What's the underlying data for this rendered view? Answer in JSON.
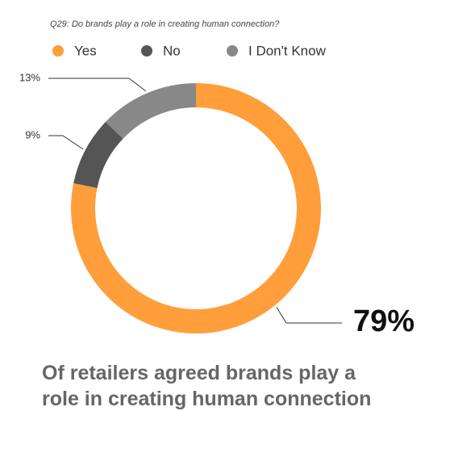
{
  "chart_data": {
    "type": "pie",
    "title": "Q29: Do brands play a role in creating human connection?",
    "categories": [
      "Yes",
      "No",
      "I Don't Know"
    ],
    "values": [
      79,
      9,
      13
    ],
    "value_labels": [
      "79%",
      "9%",
      "13%"
    ],
    "colors": [
      "#ff9e3a",
      "#555555",
      "#888888"
    ],
    "caption": "Of retailers agreed brands play a role in creating human connection"
  }
}
